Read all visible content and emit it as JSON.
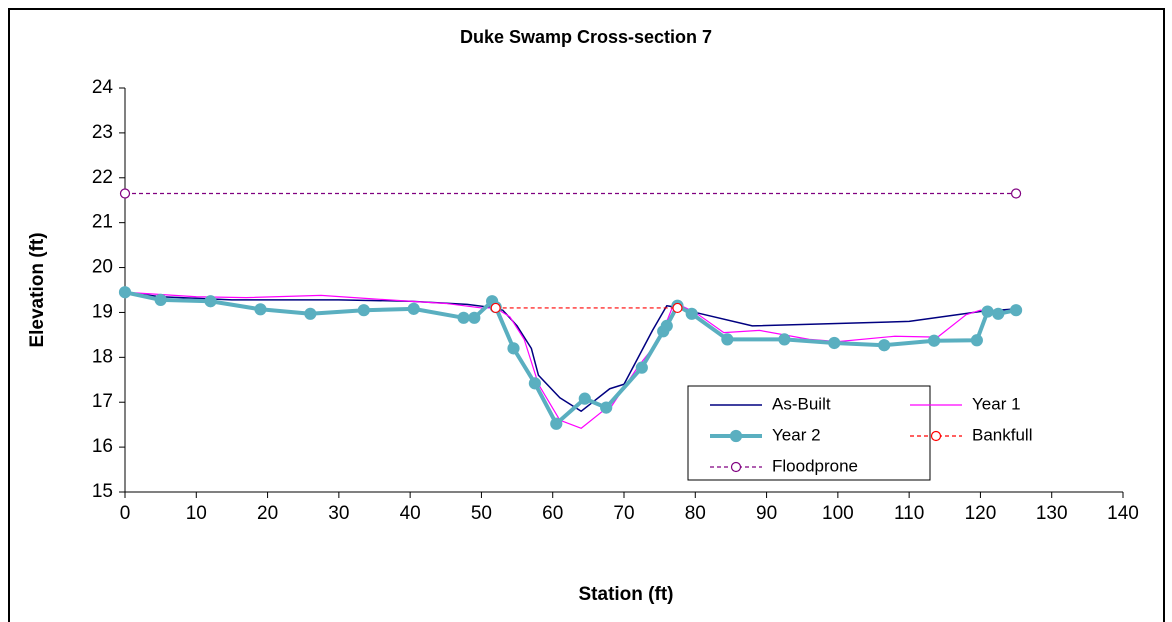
{
  "chart_data": {
    "type": "line",
    "title": "Duke Swamp Cross-section 7",
    "x_label": "Station (ft)",
    "y_label": "Elevation (ft)",
    "xlim": [
      0,
      140
    ],
    "xticks": [
      0,
      10,
      20,
      30,
      40,
      50,
      60,
      70,
      80,
      90,
      100,
      110,
      120,
      130,
      140
    ],
    "ylim": [
      15,
      24
    ],
    "yticks": [
      15,
      16,
      17,
      18,
      19,
      20,
      21,
      22,
      23,
      24
    ],
    "legend": "lower right",
    "series": [
      {
        "name": "As-Built",
        "color": "#000080",
        "width": 1.5,
        "dash": false,
        "marker": "none",
        "x": [
          0,
          5,
          15,
          30,
          40,
          48,
          51,
          53,
          55,
          57,
          58,
          61,
          64,
          68,
          70,
          74,
          76,
          78,
          80,
          88,
          110,
          120,
          125
        ],
        "values": [
          19.45,
          19.35,
          19.28,
          19.28,
          19.25,
          19.18,
          19.12,
          19.05,
          18.7,
          18.2,
          17.6,
          17.1,
          16.8,
          17.3,
          17.4,
          18.6,
          19.15,
          19.1,
          19.0,
          18.7,
          18.8,
          19.02,
          19.08
        ]
      },
      {
        "name": "Year 1",
        "color": "#ff00ff",
        "width": 1.2,
        "dash": false,
        "marker": "none",
        "x": [
          0,
          10,
          17,
          27.5,
          35,
          45,
          50,
          52,
          54,
          56,
          58,
          61,
          64,
          67,
          68,
          72,
          75,
          77,
          78,
          80,
          84,
          89,
          96,
          100,
          108,
          114,
          118,
          120,
          125
        ],
        "values": [
          19.45,
          19.35,
          19.33,
          19.38,
          19.3,
          19.2,
          19.1,
          19.1,
          18.9,
          18.4,
          17.4,
          16.6,
          16.42,
          16.8,
          16.85,
          17.8,
          18.4,
          19.2,
          19.15,
          19.0,
          18.55,
          18.6,
          18.4,
          18.35,
          18.47,
          18.45,
          18.95,
          19.05,
          19.0
        ]
      },
      {
        "name": "Year 2",
        "color": "#5aafc0",
        "width": 4,
        "dash": false,
        "marker": "filled",
        "x": [
          0,
          5,
          12,
          19,
          26,
          33.5,
          40.5,
          47.5,
          49,
          51.5,
          52,
          54.5,
          57.5,
          60.5,
          64.5,
          67.5,
          72.5,
          75.5,
          76,
          77.5,
          79.5,
          84.5,
          92.5,
          99.5,
          106.5,
          113.5,
          119.5,
          121,
          122.5,
          125
        ],
        "values": [
          19.45,
          19.28,
          19.25,
          19.07,
          18.97,
          19.05,
          19.08,
          18.88,
          18.88,
          19.25,
          19.12,
          18.2,
          17.42,
          16.52,
          17.08,
          16.88,
          17.77,
          18.58,
          18.7,
          19.15,
          18.97,
          18.4,
          18.4,
          18.32,
          18.27,
          18.37,
          18.38,
          19.02,
          18.97,
          19.05
        ]
      },
      {
        "name": "Bankfull",
        "color": "#ff0000",
        "width": 1.2,
        "dash": true,
        "marker": "hollow",
        "x": [
          52,
          77.5
        ],
        "values": [
          19.1,
          19.1
        ]
      },
      {
        "name": "Floodprone",
        "color": "#800080",
        "width": 1.2,
        "dash": true,
        "marker": "hollow",
        "x": [
          0,
          125
        ],
        "values": [
          21.65,
          21.65
        ]
      }
    ]
  }
}
